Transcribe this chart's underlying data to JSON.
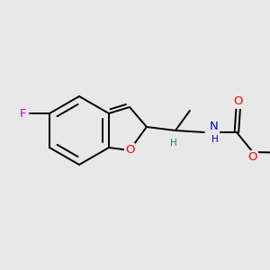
{
  "background_color": "#e8e8e8",
  "bond_color": "#000000",
  "bond_width": 1.4,
  "atom_colors": {
    "F": "#cc00cc",
    "O": "#ff0000",
    "N": "#0000cc",
    "H_teal": "#008080",
    "C": "#000000"
  },
  "font_size": 8.5,
  "fig_size": [
    3.0,
    3.0
  ],
  "dpi": 100
}
